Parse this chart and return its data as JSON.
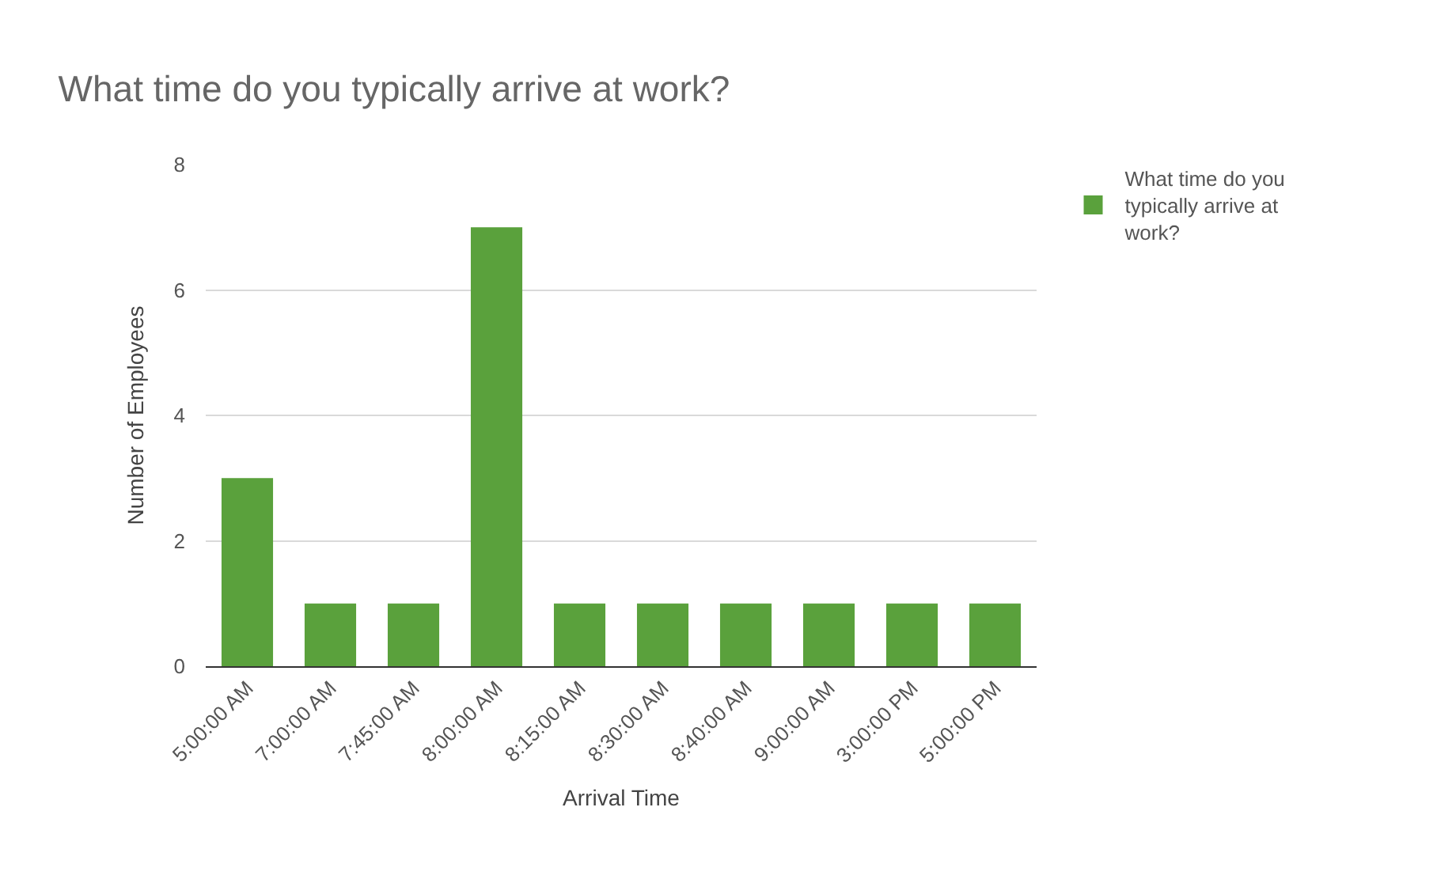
{
  "chart_data": {
    "type": "bar",
    "title": "What time do you typically arrive at work?",
    "xlabel": "Arrival Time",
    "ylabel": "Number of Employees",
    "categories": [
      "5:00:00 AM",
      "7:00:00 AM",
      "7:45:00 AM",
      "8:00:00 AM",
      "8:15:00 AM",
      "8:30:00 AM",
      "8:40:00 AM",
      "9:00:00 AM",
      "3:00:00 PM",
      "5:00:00 PM"
    ],
    "series": [
      {
        "name": "What time do you typically arrive at work?",
        "color": "#5aa13c",
        "values": [
          3,
          1,
          1,
          7,
          1,
          1,
          1,
          1,
          1,
          1
        ]
      }
    ],
    "ylim": [
      0,
      8
    ],
    "yticks": [
      0,
      2,
      4,
      6,
      8
    ],
    "grid": "y",
    "legend": "top right"
  }
}
